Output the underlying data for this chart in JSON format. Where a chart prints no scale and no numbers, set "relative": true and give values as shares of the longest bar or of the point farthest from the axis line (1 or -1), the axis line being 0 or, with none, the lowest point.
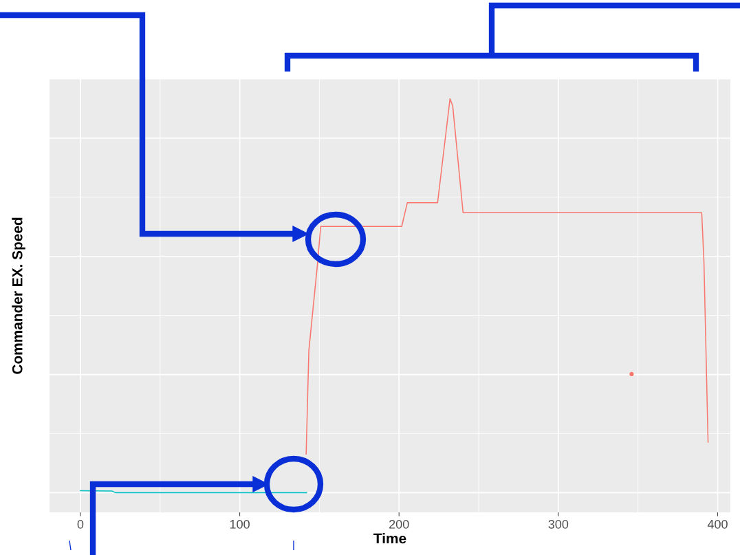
{
  "chart_data": {
    "type": "line",
    "xlabel": "Time",
    "ylabel": "Commander EX. Speed",
    "relative": true,
    "xlim": [
      -19.4,
      408
    ],
    "xticks": [
      0,
      100,
      200,
      300,
      400
    ],
    "grid": true,
    "tick_labels": "x",
    "legend": false,
    "series": [
      {
        "color": "#00bfc4",
        "x": [
          0,
          20,
          22,
          142
        ],
        "values": [
          0.005,
          0.004,
          0,
          0
        ]
      },
      {
        "color": "#f8766d",
        "x": [
          141.7,
          143.4,
          149,
          150.8,
          201.7,
          205.2,
          224.2,
          232,
          233.7,
          240.2,
          390,
          391.4,
          394
        ],
        "values": [
          0.098,
          0.361,
          0.588,
          0.676,
          0.676,
          0.736,
          0.736,
          1.0,
          0.982,
          0.711,
          0.711,
          0.588,
          0.128
        ]
      },
      {
        "type": "scatter",
        "color": "#f8766d",
        "x": [
          346
        ],
        "values": [
          0.301
        ]
      }
    ]
  }
}
